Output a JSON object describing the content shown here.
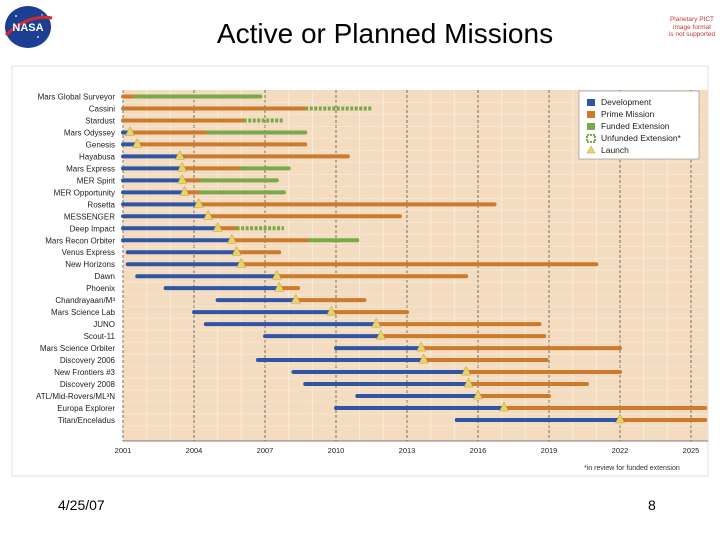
{
  "slide": {
    "title": "Active or Planned Missions",
    "logo_text": "NASA",
    "corner_note": [
      "Planetary PICT",
      "image format",
      "is not supported"
    ],
    "date": "4/25/07",
    "page_number": "8"
  },
  "colors": {
    "development": "#2f56a6",
    "prime_mission": "#cc7a2b",
    "funded_extension": "#79a94a",
    "unfunded_extension": "#79a94a",
    "launch": "#e8d36a",
    "plot_background": "#f4dcc0",
    "grid": "#f8ecdc"
  },
  "chart_data": {
    "type": "gantt",
    "title": "",
    "x_ticks": [
      2001,
      2004,
      2007,
      2010,
      2013,
      2016,
      2019,
      2022,
      2025
    ],
    "xlim": [
      2001,
      2025.6
    ],
    "grid": true,
    "legend_position": "top-right",
    "legend": [
      {
        "key": "development",
        "label": "Development"
      },
      {
        "key": "prime_mission",
        "label": "Prime Mission"
      },
      {
        "key": "funded_extension",
        "label": "Funded Extension"
      },
      {
        "key": "unfunded_extension",
        "label": "Unfunded Extension*"
      },
      {
        "key": "launch",
        "label": "Launch"
      }
    ],
    "footnote": "*in review for funded extension",
    "missions": [
      {
        "name": "Mars Global Surveyor",
        "development": null,
        "launch": null,
        "prime_mission": [
          2001.0,
          2001.5
        ],
        "funded_extension": [
          2001.5,
          2006.8
        ],
        "unfunded_extension": null
      },
      {
        "name": "Cassini",
        "development": null,
        "launch": null,
        "prime_mission": [
          2001.0,
          2008.7
        ],
        "funded_extension": null,
        "unfunded_extension": [
          2008.7,
          2011.5
        ]
      },
      {
        "name": "Stardust",
        "development": null,
        "launch": null,
        "prime_mission": [
          2001.0,
          2006.1
        ],
        "funded_extension": null,
        "unfunded_extension": [
          2006.1,
          2007.8
        ]
      },
      {
        "name": "Mars Odyssey",
        "development": [
          2001.0,
          2001.3
        ],
        "launch": 2001.3,
        "prime_mission": [
          2001.3,
          2004.6
        ],
        "funded_extension": [
          2004.6,
          2008.7
        ],
        "unfunded_extension": null
      },
      {
        "name": "Genesis",
        "development": [
          2001.0,
          2001.6
        ],
        "launch": 2001.6,
        "prime_mission": [
          2001.6,
          2008.7
        ],
        "funded_extension": null,
        "unfunded_extension": null
      },
      {
        "name": "Hayabusa",
        "development": [
          2001.0,
          2003.4
        ],
        "launch": 2003.4,
        "prime_mission": [
          2003.4,
          2010.5
        ],
        "funded_extension": null,
        "unfunded_extension": null
      },
      {
        "name": "Mars Express",
        "development": [
          2001.0,
          2003.5
        ],
        "launch": 2003.5,
        "prime_mission": [
          2003.5,
          2006.0
        ],
        "funded_extension": [
          2006.0,
          2008.0
        ],
        "unfunded_extension": null
      },
      {
        "name": "MER Spirit",
        "development": [
          2001.0,
          2003.5
        ],
        "launch": 2003.5,
        "prime_mission": [
          2003.5,
          2004.3
        ],
        "funded_extension": [
          2004.3,
          2007.5
        ],
        "unfunded_extension": null
      },
      {
        "name": "MER Opportunity",
        "development": [
          2001.0,
          2003.6
        ],
        "launch": 2003.6,
        "prime_mission": [
          2003.6,
          2004.3
        ],
        "funded_extension": [
          2004.3,
          2007.8
        ],
        "unfunded_extension": null
      },
      {
        "name": "Rosetta",
        "development": [
          2001.0,
          2004.2
        ],
        "launch": 2004.2,
        "prime_mission": [
          2004.2,
          2016.7
        ],
        "funded_extension": null,
        "unfunded_extension": null
      },
      {
        "name": "MESSENGER",
        "development": [
          2001.0,
          2004.6
        ],
        "launch": 2004.6,
        "prime_mission": [
          2004.6,
          2012.7
        ],
        "funded_extension": null,
        "unfunded_extension": null
      },
      {
        "name": "Deep Impact",
        "development": [
          2001.0,
          2005.0
        ],
        "launch": 2005.0,
        "prime_mission": [
          2005.0,
          2005.8
        ],
        "funded_extension": null,
        "unfunded_extension": [
          2005.8,
          2007.8
        ]
      },
      {
        "name": "Mars Recon Orbiter",
        "development": [
          2001.0,
          2005.6
        ],
        "launch": 2005.6,
        "prime_mission": [
          2005.6,
          2008.9
        ],
        "funded_extension": [
          2008.9,
          2010.9
        ],
        "unfunded_extension": null
      },
      {
        "name": "Venus Express",
        "development": [
          2001.2,
          2005.8
        ],
        "launch": 2005.8,
        "prime_mission": [
          2005.8,
          2007.6
        ],
        "funded_extension": null,
        "unfunded_extension": null
      },
      {
        "name": "New Horizons",
        "development": [
          2001.2,
          2006.0
        ],
        "launch": 2006.0,
        "prime_mission": [
          2006.0,
          2021.0
        ],
        "funded_extension": null,
        "unfunded_extension": null
      },
      {
        "name": "Dawn",
        "development": [
          2001.6,
          2007.5
        ],
        "launch": 2007.5,
        "prime_mission": [
          2007.5,
          2015.5
        ],
        "funded_extension": null,
        "unfunded_extension": null
      },
      {
        "name": "Phoenix",
        "development": [
          2002.8,
          2007.6
        ],
        "launch": 2007.6,
        "prime_mission": [
          2007.6,
          2008.4
        ],
        "funded_extension": null,
        "unfunded_extension": null
      },
      {
        "name": "Chandrayaan/M³",
        "development": [
          2005.0,
          2008.3
        ],
        "launch": 2008.3,
        "prime_mission": [
          2008.3,
          2011.2
        ],
        "funded_extension": null,
        "unfunded_extension": null
      },
      {
        "name": "Mars Science Lab",
        "development": [
          2004.0,
          2009.8
        ],
        "launch": 2009.8,
        "prime_mission": [
          2009.8,
          2013.0
        ],
        "funded_extension": null,
        "unfunded_extension": null
      },
      {
        "name": "JUNO",
        "development": [
          2004.5,
          2011.7
        ],
        "launch": 2011.7,
        "prime_mission": [
          2011.7,
          2018.6
        ],
        "funded_extension": null,
        "unfunded_extension": null
      },
      {
        "name": "Scout-11",
        "development": [
          2007.0,
          2011.9
        ],
        "launch": 2011.9,
        "prime_mission": [
          2011.9,
          2018.8
        ],
        "funded_extension": null,
        "unfunded_extension": null
      },
      {
        "name": "Mars Science Orbiter",
        "development": [
          2010.0,
          2013.6
        ],
        "launch": 2013.6,
        "prime_mission": [
          2013.6,
          2022.0
        ],
        "funded_extension": null,
        "unfunded_extension": null
      },
      {
        "name": "Discovery 2006",
        "development": [
          2006.7,
          2013.7
        ],
        "launch": 2013.7,
        "prime_mission": [
          2013.7,
          2018.9
        ],
        "funded_extension": null,
        "unfunded_extension": null
      },
      {
        "name": "New Frontiers #3",
        "development": [
          2008.2,
          2015.5
        ],
        "launch": 2015.5,
        "prime_mission": [
          2015.5,
          2022.0
        ],
        "funded_extension": null,
        "unfunded_extension": null
      },
      {
        "name": "Discovery 2008",
        "development": [
          2008.7,
          2015.6
        ],
        "launch": 2015.6,
        "prime_mission": [
          2015.6,
          2020.6
        ],
        "funded_extension": null,
        "unfunded_extension": null
      },
      {
        "name": "ATL/Mid-Rovers/ML³N",
        "development": [
          2010.9,
          2016.0
        ],
        "launch": 2016.0,
        "prime_mission": [
          2016.0,
          2019.0
        ],
        "funded_extension": null,
        "unfunded_extension": null
      },
      {
        "name": "Europa Explorer",
        "development": [
          2010.0,
          2017.1
        ],
        "launch": 2017.1,
        "prime_mission": [
          2017.1,
          2025.6
        ],
        "funded_extension": null,
        "unfunded_extension": null
      },
      {
        "name": "Titan/Enceladus",
        "development": [
          2015.1,
          2022.0
        ],
        "launch": 2022.0,
        "prime_mission": [
          2022.0,
          2025.6
        ],
        "funded_extension": null,
        "unfunded_extension": null
      }
    ]
  }
}
